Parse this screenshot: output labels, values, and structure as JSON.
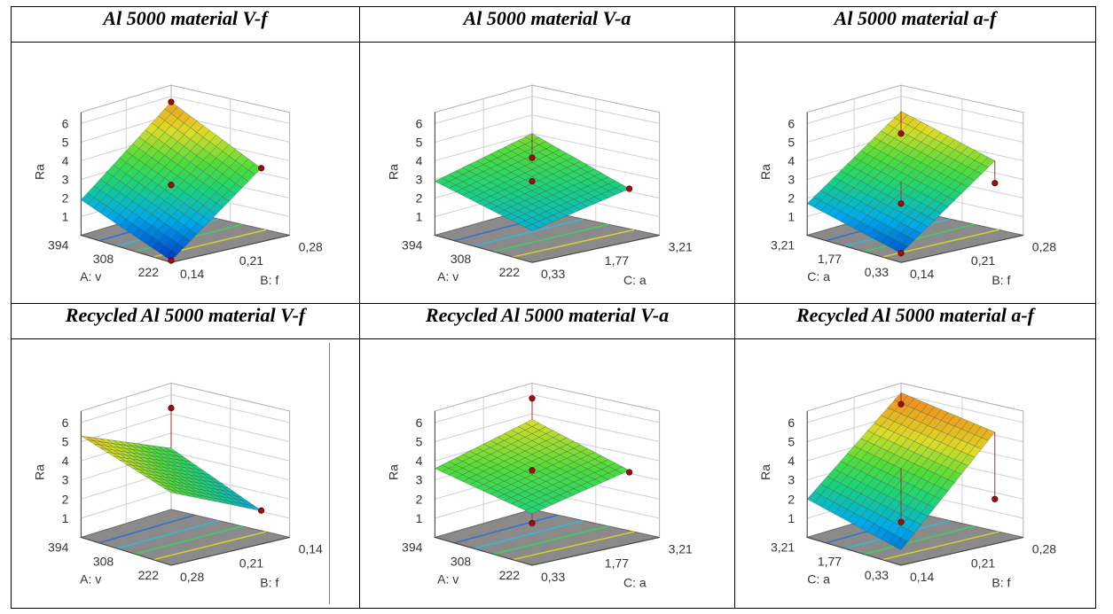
{
  "panels": [
    {
      "title": "Al 5000 material V-f",
      "chart_data": {
        "type": "surface",
        "zlabel": "Ra",
        "zticks": [
          "1",
          "2",
          "3",
          "4",
          "5",
          "6"
        ],
        "x_axis": {
          "label": "A: v",
          "ticks": [
            "222",
            "308",
            "394"
          ]
        },
        "y_axis": {
          "label": "B: f",
          "ticks": [
            "0,14",
            "0,21",
            "0,28"
          ]
        },
        "corners": {
          "left": 1.9,
          "front": 0.1,
          "right": 3.6,
          "back": 5.7
        },
        "design_points": [
          5.7,
          3.6,
          2.7,
          0.1
        ]
      }
    },
    {
      "title": "Al 5000 material V-a",
      "chart_data": {
        "type": "surface",
        "zlabel": "Ra",
        "zticks": [
          "1",
          "2",
          "3",
          "4",
          "5",
          "6"
        ],
        "x_axis": {
          "label": "A: v",
          "ticks": [
            "222",
            "308",
            "394"
          ]
        },
        "y_axis": {
          "label": "C: a",
          "ticks": [
            "0,33",
            "1,77",
            "3,21"
          ]
        },
        "corners": {
          "left": 2.9,
          "front": 1.7,
          "right": 2.5,
          "back": 4.0
        },
        "design_points": [
          2.7,
          2.5,
          2.9
        ]
      }
    },
    {
      "title": "Al 5000 material a-f",
      "chart_data": {
        "type": "surface",
        "zlabel": "Ra",
        "zticks": [
          "1",
          "2",
          "3",
          "4",
          "5",
          "6"
        ],
        "x_axis": {
          "label": "C: a",
          "ticks": [
            "0,33",
            "1,77",
            "3,21"
          ]
        },
        "y_axis": {
          "label": "B: f",
          "ticks": [
            "0,14",
            "0,21",
            "0,28"
          ]
        },
        "corners": {
          "left": 1.7,
          "front": 0.5,
          "right": 4.0,
          "back": 5.2
        },
        "design_points": [
          4.0,
          2.8,
          1.7,
          0.5
        ]
      }
    },
    {
      "title": "Recycled Al 5000 material V-f",
      "chart_data": {
        "type": "surface",
        "zlabel": "Ra",
        "zticks": [
          "1",
          "2",
          "3",
          "4",
          "5",
          "6"
        ],
        "x_axis": {
          "label": "A: v",
          "ticks": [
            "222",
            "308",
            "394"
          ]
        },
        "y_axis": {
          "label": "B: f",
          "ticks": [
            "0,28",
            "0,21",
            "0,14"
          ]
        },
        "corners": {
          "left": 5.3,
          "front": 3.8,
          "right": 1.4,
          "back": 3.2
        },
        "design_points": [
          5.3,
          1.4
        ]
      }
    },
    {
      "title": "Recycled Al 5000 material V-a",
      "chart_data": {
        "type": "surface",
        "zlabel": "Ra",
        "zticks": [
          "1",
          "2",
          "3",
          "4",
          "5",
          "6"
        ],
        "x_axis": {
          "label": "A: v",
          "ticks": [
            "222",
            "308",
            "394"
          ]
        },
        "y_axis": {
          "label": "C: a",
          "ticks": [
            "0,33",
            "1,77",
            "3,21"
          ]
        },
        "corners": {
          "left": 3.6,
          "front": 2.7,
          "right": 3.5,
          "back": 4.7
        },
        "design_points": [
          5.8,
          3.4,
          3.5,
          2.2
        ]
      }
    },
    {
      "title": "Recycled Al 5000 material a-f",
      "chart_data": {
        "type": "surface",
        "zlabel": "Ra",
        "zticks": [
          "1",
          "2",
          "3",
          "4",
          "5",
          "6"
        ],
        "x_axis": {
          "label": "C: a",
          "ticks": [
            "0,33",
            "1,77",
            "3,21"
          ]
        },
        "y_axis": {
          "label": "B: f",
          "ticks": [
            "0,14",
            "0,21",
            "0,28"
          ]
        },
        "corners": {
          "left": 2.0,
          "front": 0.8,
          "right": 5.5,
          "back": 6.1
        },
        "design_points": [
          5.5,
          2.0,
          0.8
        ]
      }
    }
  ],
  "colors": {
    "grid_line": "#a8a8a8",
    "floor": "#8a8a8a",
    "axis": "#404040",
    "point": "#9b1010",
    "border": "#000000"
  }
}
